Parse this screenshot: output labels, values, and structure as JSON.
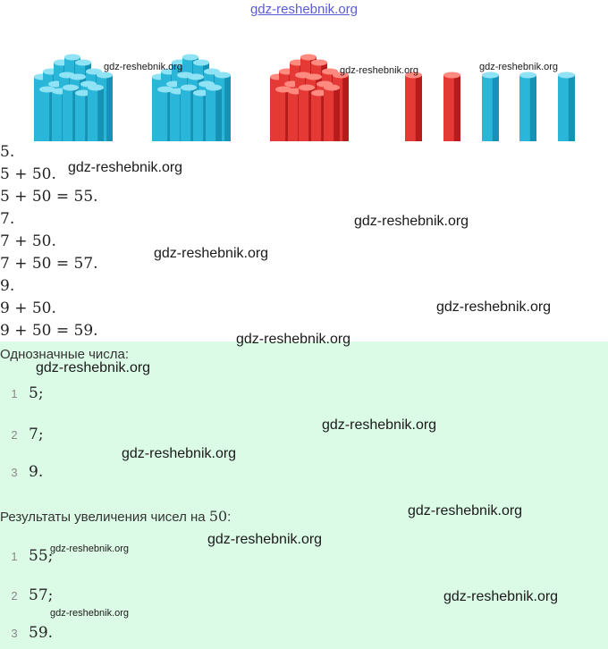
{
  "header": {
    "site": "gdz-reshebnik.org"
  },
  "figure": {
    "groups": [
      {
        "kind": "bundle",
        "color": "blue",
        "label": "gdz-reshebnik.org"
      },
      {
        "kind": "bundle",
        "color": "blue"
      },
      {
        "kind": "bundle",
        "color": "red",
        "label": "gdz-reshebnik.org"
      },
      {
        "kind": "singles",
        "color": "red",
        "count": 2
      },
      {
        "kind": "singles",
        "color": "blue",
        "count": 3,
        "label": "gdz-reshebnik.org"
      }
    ],
    "colors": {
      "blue": "#29b6d8",
      "red": "#e53935"
    }
  },
  "solution": {
    "lines": [
      "5.",
      "5 + 50.",
      "5 + 50 = 55.",
      "7.",
      "7 + 50.",
      "7 + 50 = 57.",
      "9.",
      "9 + 50.",
      "9 + 50 = 59."
    ]
  },
  "answer": {
    "heading1": "Однозначные числа:",
    "list1": [
      {
        "n": "1",
        "v": "5;"
      },
      {
        "n": "2",
        "v": "7;"
      },
      {
        "n": "3",
        "v": "9."
      }
    ],
    "heading2_text": "Результаты увеличения чисел на ",
    "heading2_num": "50",
    "heading2_end": ":",
    "list2": [
      {
        "n": "1",
        "v": "55;"
      },
      {
        "n": "2",
        "v": "57;"
      },
      {
        "n": "3",
        "v": "59."
      }
    ]
  },
  "watermarks": [
    "gdz-reshebnik.org",
    "gdz-reshebnik.org",
    "gdz-reshebnik.org",
    "gdz-reshebnik.org",
    "gdz-reshebnik.org",
    "gdz-reshebnik.org",
    "gdz-reshebnik.org",
    "gdz-reshebnik.org",
    "gdz-reshebnik.org",
    "gdz-reshebnik.org",
    "gdz-reshebnik.org",
    "gdz-reshebnik.org",
    "gdz-reshebnik.org"
  ],
  "accent_colors": {
    "answer_bg": "#dcfbe6",
    "header_link": "#5b5bd6"
  }
}
